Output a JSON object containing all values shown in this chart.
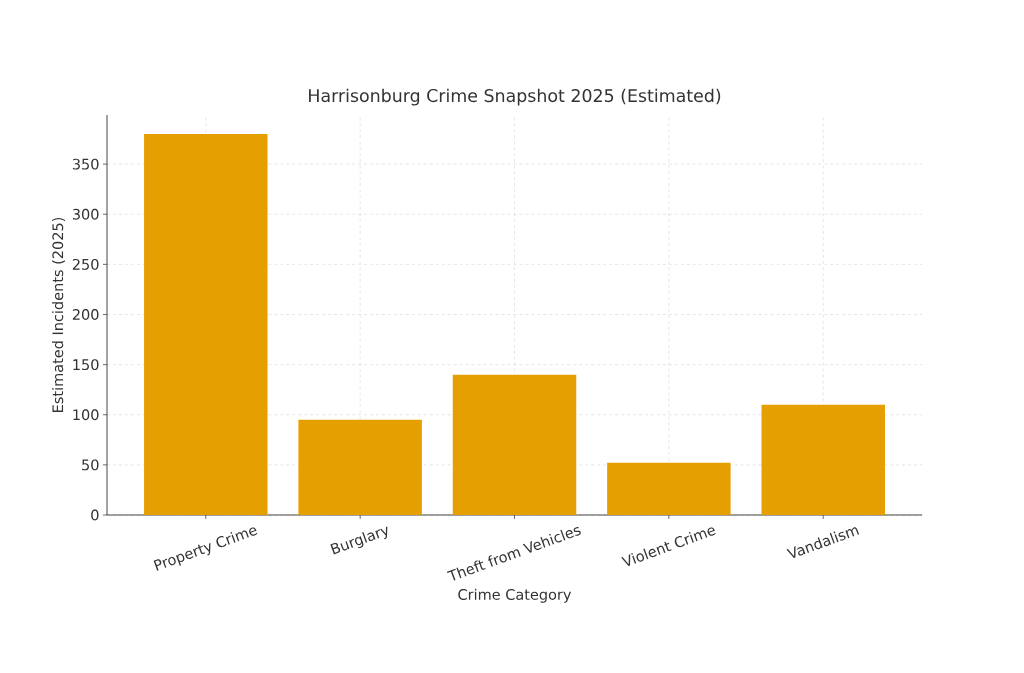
{
  "chart_data": {
    "type": "bar",
    "title": "Harrisonburg Crime Snapshot 2025 (Estimated)",
    "xlabel": "Crime Category",
    "ylabel": "Estimated Incidents (2025)",
    "categories": [
      "Property Crime",
      "Burglary",
      "Theft from Vehicles",
      "Violent Crime",
      "Vandalism"
    ],
    "values": [
      380,
      95,
      140,
      52,
      110
    ],
    "color": "#e69f00",
    "ylim": [
      0,
      399
    ],
    "yticks": [
      0,
      50,
      100,
      150,
      200,
      250,
      300,
      350
    ],
    "grid": true
  }
}
